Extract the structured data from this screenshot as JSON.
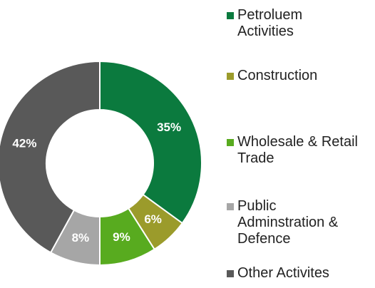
{
  "chart_data": {
    "type": "pie",
    "categories": [
      "Petroluem Activities",
      "Construction",
      "Wholesale & Retail Trade",
      "Public Adminstration & Defence",
      "Other Activites"
    ],
    "values": [
      35,
      6,
      9,
      8,
      42
    ],
    "value_labels": [
      "35%",
      "6%",
      "9%",
      "8%",
      "42%"
    ],
    "colors": [
      "#0b7a3e",
      "#9b9b2b",
      "#58ab1f",
      "#a6a6a6",
      "#595959"
    ],
    "legend": "right"
  }
}
